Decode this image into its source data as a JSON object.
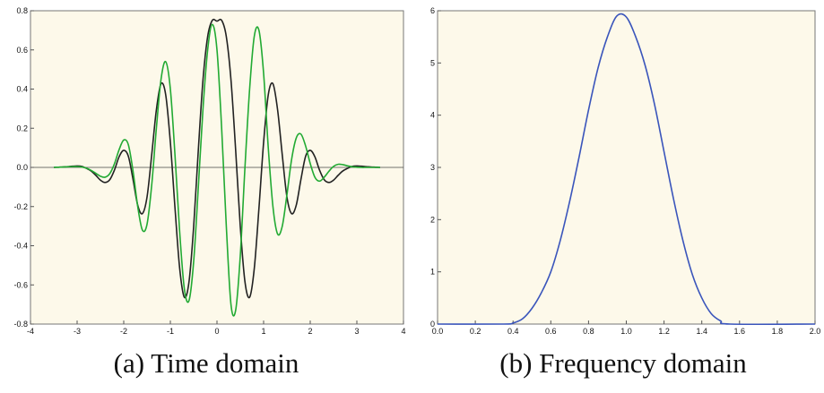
{
  "chart_data": [
    {
      "type": "line",
      "title": "",
      "caption": "(a) Time domain",
      "xlabel": "",
      "ylabel": "",
      "xlim": [
        -4,
        4
      ],
      "ylim": [
        -0.8,
        0.8
      ],
      "xticks": [
        "-4",
        "-3",
        "-2",
        "-1",
        "0",
        "1",
        "2",
        "3",
        "4"
      ],
      "yticks": [
        "0.8",
        "0.6",
        "0.4",
        "0.2",
        "0.0",
        "-0.2",
        "-0.4",
        "-0.6",
        "-0.8"
      ],
      "grid": false,
      "x": [
        -3.5,
        -3.4,
        -3.3,
        -3.2,
        -3.1,
        -3.0,
        -2.9,
        -2.8,
        -2.7,
        -2.6,
        -2.5,
        -2.4,
        -2.3,
        -2.2,
        -2.1,
        -2.0,
        -1.9,
        -1.8,
        -1.7,
        -1.6,
        -1.5,
        -1.4,
        -1.3,
        -1.2,
        -1.1,
        -1.0,
        -0.9,
        -0.8,
        -0.7,
        -0.6,
        -0.5,
        -0.4,
        -0.3,
        -0.2,
        -0.1,
        0.0,
        0.1,
        0.2,
        0.3,
        0.4,
        0.5,
        0.6,
        0.7,
        0.8,
        0.9,
        1.0,
        1.1,
        1.2,
        1.3,
        1.4,
        1.5,
        1.6,
        1.7,
        1.8,
        1.9,
        2.0,
        2.1,
        2.2,
        2.3,
        2.4,
        2.5,
        2.6,
        2.7,
        2.8,
        2.9,
        3.0,
        3.1,
        3.2,
        3.3,
        3.4,
        3.5
      ],
      "series": [
        {
          "color": "#222222",
          "values": [
            0.0,
            0.001,
            0.002,
            0.004,
            0.006,
            0.007,
            0.005,
            -0.005,
            -0.018,
            -0.04,
            -0.065,
            -0.077,
            -0.063,
            -0.014,
            0.054,
            0.087,
            0.056,
            -0.062,
            -0.193,
            -0.236,
            -0.151,
            0.064,
            0.294,
            0.427,
            0.371,
            0.128,
            -0.209,
            -0.516,
            -0.663,
            -0.584,
            -0.302,
            0.09,
            0.447,
            0.668,
            0.751,
            0.747,
            0.751,
            0.668,
            0.447,
            0.09,
            -0.302,
            -0.584,
            -0.663,
            -0.516,
            -0.209,
            0.128,
            0.371,
            0.427,
            0.294,
            0.064,
            -0.151,
            -0.236,
            -0.193,
            -0.062,
            0.056,
            0.087,
            0.054,
            -0.014,
            -0.063,
            -0.077,
            -0.065,
            -0.04,
            -0.018,
            -0.005,
            0.005,
            0.007,
            0.006,
            0.004,
            0.002,
            0.001,
            0.0
          ]
        },
        {
          "color": "#22aa33",
          "values": [
            0.0,
            0.001,
            0.002,
            0.003,
            0.004,
            0.004,
            0.002,
            -0.004,
            -0.015,
            -0.03,
            -0.045,
            -0.05,
            -0.032,
            0.018,
            0.09,
            0.14,
            0.115,
            -0.02,
            -0.2,
            -0.32,
            -0.29,
            -0.09,
            0.2,
            0.45,
            0.54,
            0.4,
            0.06,
            -0.33,
            -0.62,
            -0.68,
            -0.48,
            -0.1,
            0.3,
            0.6,
            0.73,
            0.6,
            0.2,
            -0.3,
            -0.7,
            -0.73,
            -0.45,
            0.0,
            0.4,
            0.67,
            0.7,
            0.48,
            0.1,
            -0.2,
            -0.34,
            -0.3,
            -0.14,
            0.04,
            0.15,
            0.17,
            0.11,
            0.02,
            -0.05,
            -0.07,
            -0.05,
            -0.02,
            0.005,
            0.016,
            0.014,
            0.008,
            0.003,
            0.001,
            0.0,
            0.0,
            0.0,
            0.0,
            0.0
          ]
        }
      ]
    },
    {
      "type": "line",
      "title": "",
      "caption": "(b) Frequency domain",
      "xlabel": "",
      "ylabel": "",
      "xlim": [
        0,
        2.0
      ],
      "ylim": [
        0,
        6
      ],
      "xticks": [
        "0.0",
        "0.2",
        "0.4",
        "0.6",
        "0.8",
        "1.0",
        "1.2",
        "1.4",
        "1.6",
        "1.8",
        "2.0"
      ],
      "yticks": [
        "6",
        "5",
        "4",
        "3",
        "2",
        "1",
        "0"
      ],
      "grid": false,
      "series": [
        {
          "color": "#3a55bb",
          "x": [
            0.0,
            0.35,
            0.4,
            0.45,
            0.5,
            0.55,
            0.6,
            0.65,
            0.7,
            0.75,
            0.8,
            0.85,
            0.9,
            0.95,
            1.0,
            1.05,
            1.1,
            1.15,
            1.2,
            1.25,
            1.3,
            1.35,
            1.4,
            1.45,
            1.5,
            1.55,
            2.0
          ],
          "values": [
            0.0,
            0.0,
            0.02,
            0.1,
            0.3,
            0.6,
            1.0,
            1.6,
            2.35,
            3.2,
            4.1,
            4.9,
            5.5,
            5.9,
            5.88,
            5.5,
            4.95,
            4.2,
            3.3,
            2.4,
            1.6,
            0.95,
            0.5,
            0.2,
            0.06,
            0.0,
            0.0
          ]
        }
      ]
    }
  ]
}
